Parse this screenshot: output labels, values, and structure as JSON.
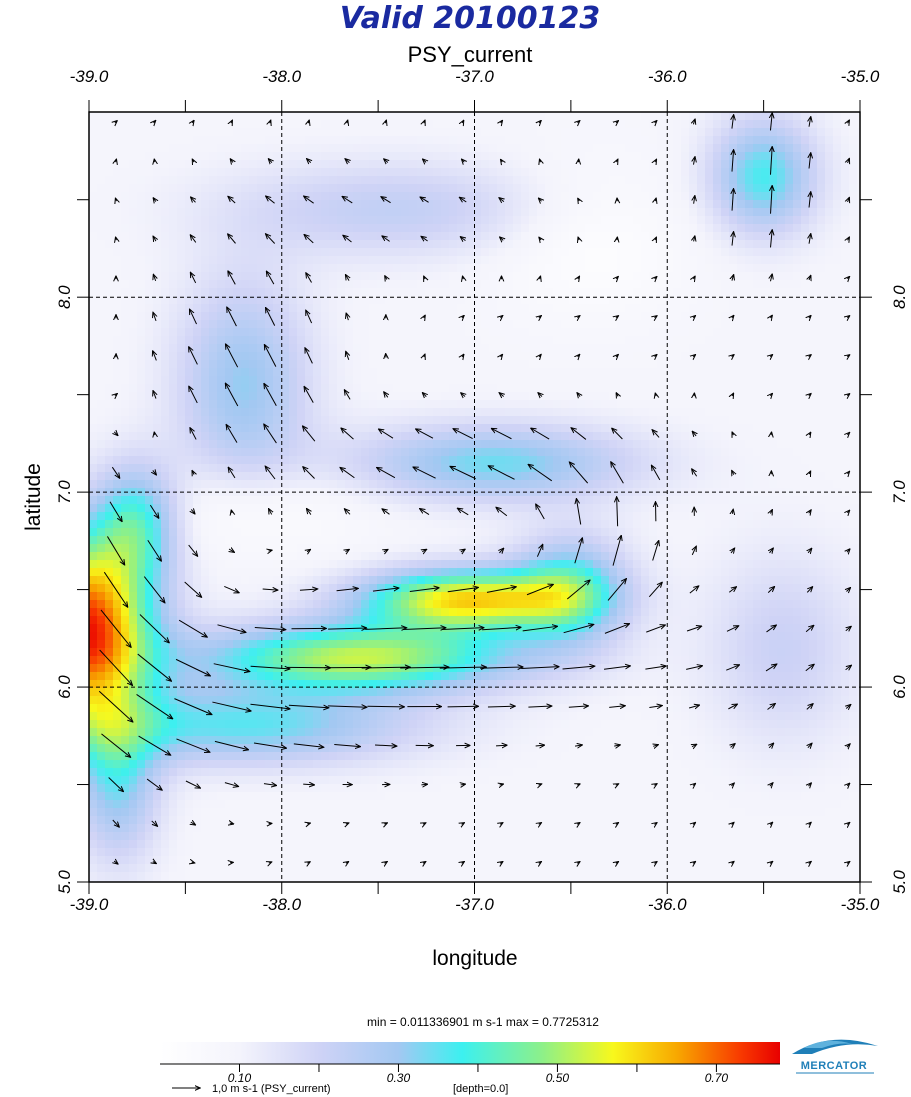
{
  "header": {
    "title": "Valid 20100123",
    "subtitle": "PSY_current"
  },
  "axes": {
    "xlabel": "longitude",
    "ylabel": "latitude",
    "x_ticks": [
      -39.0,
      -38.0,
      -37.0,
      -36.0,
      -35.0
    ],
    "x_tick_labels": [
      "-39.0",
      "-38.0",
      "-37.0",
      "-36.0",
      "-35.0"
    ],
    "y_ticks": [
      5.0,
      6.0,
      7.0,
      8.0
    ],
    "y_tick_labels": [
      "5.0",
      "6.0",
      "7.0",
      "8.0"
    ],
    "xlim": [
      -39.0,
      -35.0
    ],
    "ylim": [
      5.0,
      8.95
    ]
  },
  "stats": {
    "text": "min = 0.011336901   m s-1   max = 0.7725312"
  },
  "colorbar": {
    "tick_labels": [
      "0.10",
      "0.30",
      "0.50",
      "0.70"
    ],
    "ticks": [
      0.1,
      0.2,
      0.3,
      0.4,
      0.5,
      0.6,
      0.7
    ],
    "range": [
      0.0,
      0.78
    ],
    "stops": [
      {
        "v": 0.0,
        "c": "#ffffff"
      },
      {
        "v": 0.1,
        "c": "#f4f4fc"
      },
      {
        "v": 0.2,
        "c": "#cfd3f6"
      },
      {
        "v": 0.3,
        "c": "#a3c8f2"
      },
      {
        "v": 0.38,
        "c": "#3cf0f0"
      },
      {
        "v": 0.48,
        "c": "#8cf08a"
      },
      {
        "v": 0.57,
        "c": "#f8f81c"
      },
      {
        "v": 0.65,
        "c": "#f8a800"
      },
      {
        "v": 0.73,
        "c": "#f83a00"
      },
      {
        "v": 0.78,
        "c": "#e80000"
      }
    ]
  },
  "legend": {
    "arrow_text": "1,0 m s-1 (PSY_current)",
    "depth_text": "[depth=0.0]"
  },
  "logo": {
    "text": "MERCATOR",
    "color": "#1f7fb8"
  },
  "colors": {
    "title": "#1a2aa0"
  },
  "chart_data": {
    "type": "heatmap",
    "title": "Valid 20100123",
    "subtitle": "PSY_current",
    "xlabel": "longitude",
    "ylabel": "latitude",
    "xlim": [
      -39.0,
      -35.0
    ],
    "ylim": [
      5.0,
      8.95
    ],
    "value_range": [
      0.011336901,
      0.7725312
    ],
    "units": "m s-1",
    "depth": 0.0,
    "features": [
      {
        "lon": -39.0,
        "lat": 6.3,
        "speed": 0.77
      },
      {
        "lon": -37.1,
        "lat": 6.45,
        "speed": 0.62
      },
      {
        "lon": -37.5,
        "lat": 6.15,
        "speed": 0.56
      },
      {
        "lon": -38.2,
        "lat": 5.75,
        "speed": 0.38
      },
      {
        "lon": -35.5,
        "lat": 8.65,
        "speed": 0.36
      },
      {
        "lon": -37.0,
        "lat": 7.15,
        "speed": 0.34
      },
      {
        "lon": -38.2,
        "lat": 7.8,
        "speed": 0.3
      }
    ]
  }
}
